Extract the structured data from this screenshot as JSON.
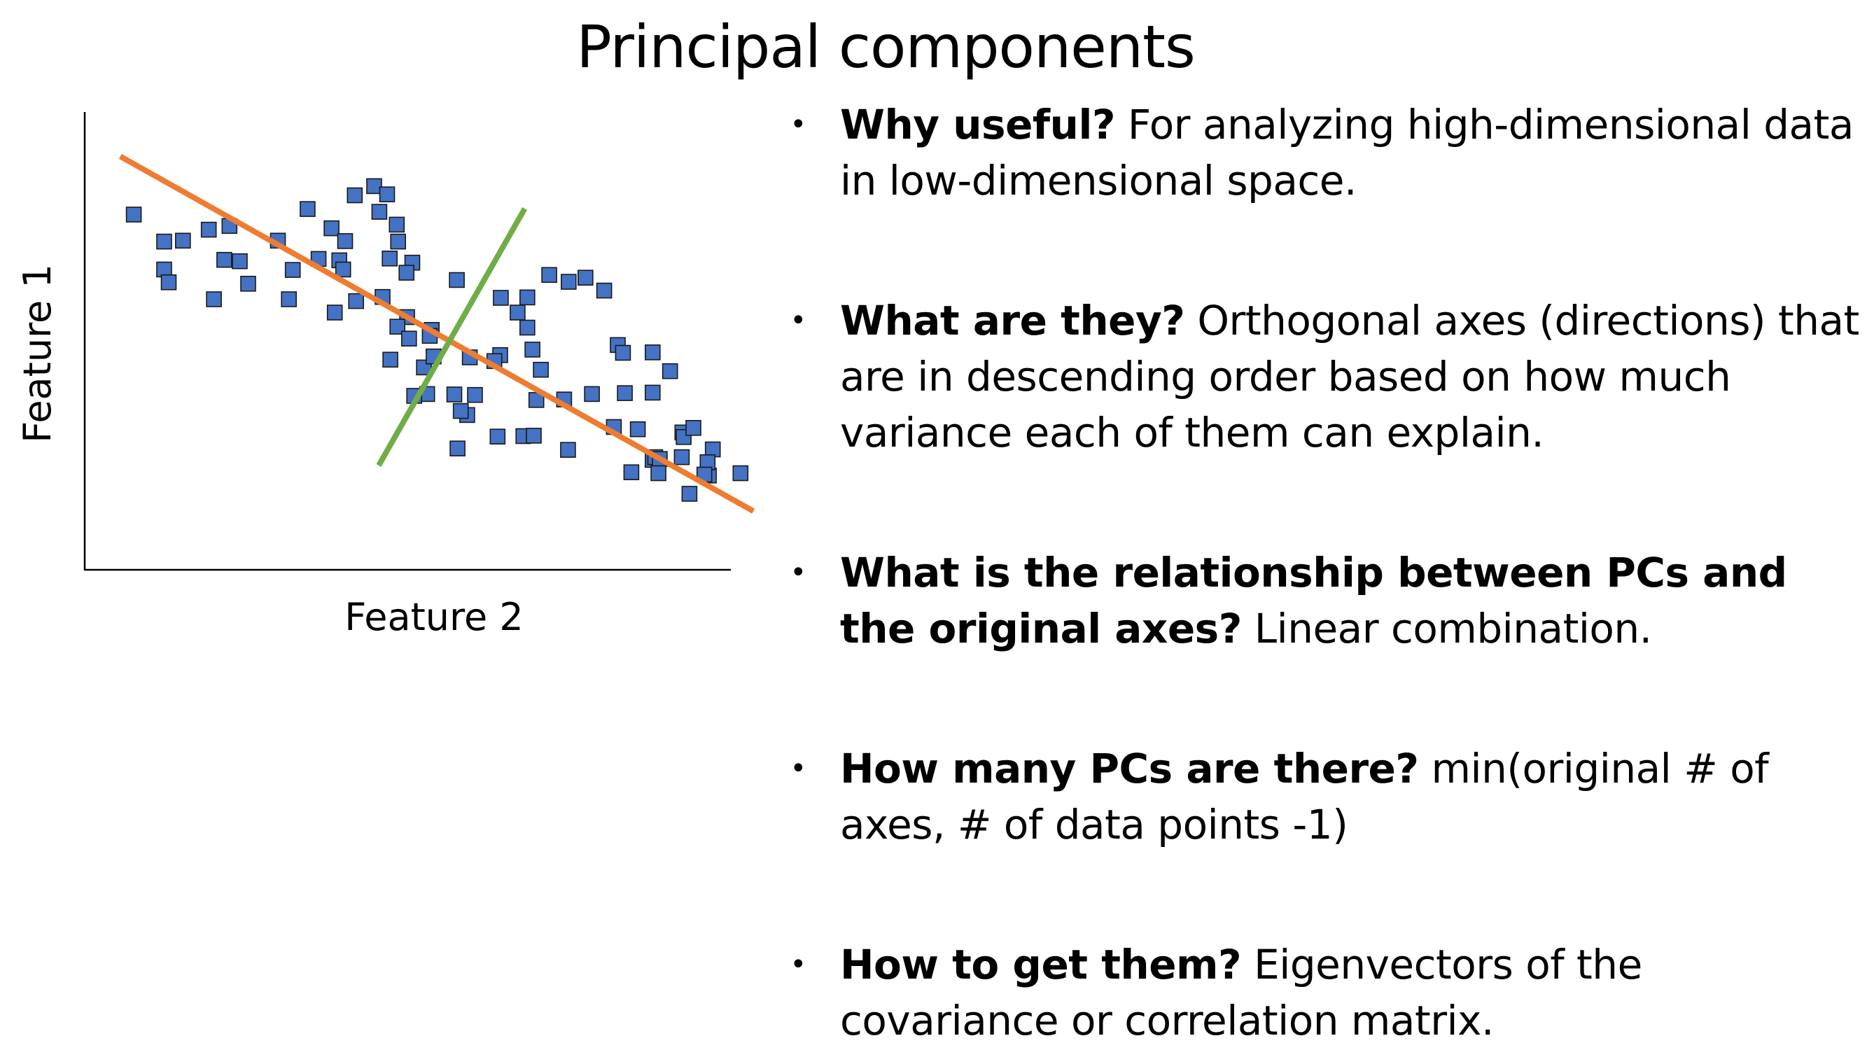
{
  "title": "Principal components",
  "bullet_glyph": "•",
  "bullets": [
    {
      "lead": "Why useful?",
      "text": " For analyzing high-dimensional data in low-dimensional space."
    },
    {
      "lead": "What are they?",
      "text": " Orthogonal axes (directions) that are in descending order based on how much variance each of them can explain."
    },
    {
      "lead": "What is the relationship between PCs and the original axes?",
      "text": " Linear combination."
    },
    {
      "lead": "How many PCs are there?",
      "text": " min(original # of axes, # of data points -1)"
    },
    {
      "lead": "How to get them?",
      "text": " Eigenvectors of the covariance or correlation matrix."
    }
  ],
  "chart_data": {
    "type": "scatter",
    "xlabel": "Feature 2",
    "ylabel": "Feature 1",
    "xlim": [
      0,
      100
    ],
    "ylim": [
      0,
      100
    ],
    "grid": false,
    "marker_color": "#4472C4",
    "points": [
      [
        7.6,
        77.6
      ],
      [
        12.3,
        71.7
      ],
      [
        15.2,
        71.9
      ],
      [
        12.3,
        65.6
      ],
      [
        13.0,
        62.8
      ],
      [
        19.2,
        74.3
      ],
      [
        22.4,
        75.1
      ],
      [
        21.6,
        67.7
      ],
      [
        24.0,
        67.4
      ],
      [
        25.3,
        62.5
      ],
      [
        20.0,
        59.1
      ],
      [
        29.9,
        71.9
      ],
      [
        34.5,
        78.8
      ],
      [
        32.2,
        65.5
      ],
      [
        36.2,
        67.9
      ],
      [
        39.4,
        67.6
      ],
      [
        40.0,
        65.6
      ],
      [
        42.0,
        58.7
      ],
      [
        31.6,
        59.1
      ],
      [
        38.2,
        74.6
      ],
      [
        38.7,
        56.2
      ],
      [
        41.8,
        81.8
      ],
      [
        44.8,
        83.8
      ],
      [
        46.8,
        82.0
      ],
      [
        45.6,
        78.2
      ],
      [
        48.3,
        75.4
      ],
      [
        40.3,
        71.8
      ],
      [
        47.2,
        68.0
      ],
      [
        48.5,
        71.7
      ],
      [
        50.7,
        67.1
      ],
      [
        49.8,
        64.9
      ],
      [
        46.1,
        59.6
      ],
      [
        49.9,
        55.2
      ],
      [
        48.4,
        53.1
      ],
      [
        53.7,
        52.4
      ],
      [
        50.2,
        50.5
      ],
      [
        47.3,
        45.9
      ],
      [
        52.5,
        44.2
      ],
      [
        53.0,
        38.4
      ],
      [
        51.0,
        38.0
      ],
      [
        57.6,
        63.3
      ],
      [
        54.0,
        46.6
      ],
      [
        60.4,
        38.2
      ],
      [
        64.4,
        59.4
      ],
      [
        64.3,
        46.9
      ],
      [
        71.9,
        64.4
      ],
      [
        68.5,
        59.5
      ],
      [
        67.0,
        56.2
      ],
      [
        68.5,
        52.9
      ],
      [
        69.3,
        48.1
      ],
      [
        70.6,
        43.7
      ],
      [
        69.9,
        37.1
      ],
      [
        59.6,
        46.4
      ],
      [
        59.2,
        33.8
      ],
      [
        63.4,
        45.6
      ],
      [
        57.2,
        38.3
      ],
      [
        58.2,
        34.7
      ],
      [
        53.4,
        51.1
      ],
      [
        57.7,
        26.5
      ],
      [
        63.9,
        29.1
      ],
      [
        67.9,
        29.2
      ],
      [
        69.5,
        29.3
      ],
      [
        74.2,
        37.2
      ],
      [
        74.9,
        62.9
      ],
      [
        77.5,
        63.8
      ],
      [
        80.4,
        61.0
      ],
      [
        82.5,
        49.1
      ],
      [
        83.3,
        47.4
      ],
      [
        78.5,
        38.4
      ],
      [
        83.6,
        38.6
      ],
      [
        74.8,
        26.2
      ],
      [
        87.9,
        47.5
      ],
      [
        90.6,
        43.4
      ],
      [
        87.9,
        38.7
      ],
      [
        85.6,
        30.7
      ],
      [
        81.9,
        31.2
      ],
      [
        87.9,
        24.0
      ],
      [
        88.3,
        24.6
      ],
      [
        92.5,
        30.0
      ],
      [
        89.0,
        24.2
      ],
      [
        92.4,
        24.6
      ],
      [
        92.7,
        29.0
      ],
      [
        94.2,
        31.0
      ],
      [
        97.2,
        26.3
      ],
      [
        88.8,
        21.1
      ],
      [
        96.6,
        20.6
      ],
      [
        93.6,
        16.6
      ],
      [
        96.4,
        23.5
      ],
      [
        95.9,
        20.8
      ],
      [
        84.6,
        21.3
      ],
      [
        101.5,
        21.1
      ]
    ],
    "lines": [
      {
        "name": "",
        "color": "#ED7D31",
        "from": [
          5.5,
          90.3
        ],
        "to": [
          103.5,
          12.8
        ]
      },
      {
        "name": "",
        "color": "#70AD47",
        "from": [
          45.5,
          22.8
        ],
        "to": [
          68.1,
          78.9
        ]
      }
    ]
  }
}
